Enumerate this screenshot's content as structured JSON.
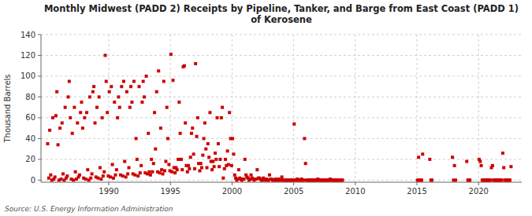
{
  "chart_data": {
    "type": "scatter",
    "title": "Monthly Midwest (PADD 2) Receipts by Pipeline, Tanker, and Barge from East Coast (PADD 1)\nof Kerosene",
    "ylabel": "Thousand Barrels",
    "annotations": [
      "Source: U.S. Energy Information Administration"
    ],
    "color": "#cc0000",
    "marker": "square",
    "grid": true,
    "xlim": [
      1984.5,
      2023.5
    ],
    "ylim": [
      -2,
      140
    ],
    "yticks": [
      0,
      20,
      40,
      60,
      80,
      100,
      120,
      140
    ],
    "xticks": [
      1990,
      1995,
      2000,
      2005,
      2010,
      2015,
      2020
    ],
    "x": [
      1985.04,
      1985.13,
      1985.21,
      1985.29,
      1985.38,
      1985.46,
      1985.54,
      1985.63,
      1985.71,
      1985.79,
      1985.88,
      1985.96,
      1986.04,
      1986.13,
      1986.21,
      1986.29,
      1986.38,
      1986.46,
      1986.54,
      1986.63,
      1986.71,
      1986.79,
      1986.88,
      1986.96,
      1987.04,
      1987.13,
      1987.21,
      1987.29,
      1987.38,
      1987.46,
      1987.54,
      1987.63,
      1987.71,
      1987.79,
      1987.88,
      1987.96,
      1988.04,
      1988.13,
      1988.21,
      1988.29,
      1988.38,
      1988.46,
      1988.54,
      1988.63,
      1988.71,
      1988.79,
      1988.88,
      1988.96,
      1989.04,
      1989.13,
      1989.21,
      1989.29,
      1989.38,
      1989.46,
      1989.54,
      1989.63,
      1989.71,
      1989.79,
      1989.88,
      1989.96,
      1990.04,
      1990.13,
      1990.21,
      1990.29,
      1990.38,
      1990.46,
      1990.54,
      1990.63,
      1990.71,
      1990.79,
      1990.88,
      1990.96,
      1991.04,
      1991.13,
      1991.21,
      1991.29,
      1991.38,
      1991.46,
      1991.54,
      1991.63,
      1991.71,
      1991.79,
      1991.88,
      1991.96,
      1992.04,
      1992.13,
      1992.21,
      1992.29,
      1992.38,
      1992.46,
      1992.54,
      1992.63,
      1992.71,
      1992.79,
      1992.88,
      1992.96,
      1993.04,
      1993.13,
      1993.21,
      1993.29,
      1993.38,
      1993.46,
      1993.54,
      1993.63,
      1993.71,
      1993.79,
      1993.88,
      1993.96,
      1994.04,
      1994.13,
      1994.21,
      1994.29,
      1994.38,
      1994.46,
      1994.54,
      1994.63,
      1994.71,
      1994.79,
      1994.88,
      1994.96,
      1995.04,
      1995.13,
      1995.21,
      1995.29,
      1995.38,
      1995.46,
      1995.54,
      1995.63,
      1995.71,
      1995.79,
      1995.88,
      1995.96,
      1996.04,
      1996.13,
      1996.21,
      1996.29,
      1996.38,
      1996.46,
      1996.54,
      1996.63,
      1996.71,
      1996.79,
      1996.88,
      1996.96,
      1997.04,
      1997.13,
      1997.21,
      1997.29,
      1997.38,
      1997.46,
      1997.54,
      1997.63,
      1997.71,
      1997.79,
      1997.88,
      1997.96,
      1998.04,
      1998.13,
      1998.21,
      1998.29,
      1998.38,
      1998.46,
      1998.54,
      1998.63,
      1998.71,
      1998.79,
      1998.88,
      1998.96,
      1999.04,
      1999.13,
      1999.21,
      1999.29,
      1999.38,
      1999.46,
      1999.54,
      1999.63,
      1999.71,
      1999.79,
      1999.88,
      1999.96,
      2000.04,
      2000.13,
      2000.21,
      2000.29,
      2000.38,
      2000.46,
      2000.54,
      2000.63,
      2000.71,
      2000.79,
      2000.88,
      2000.96,
      2001.04,
      2001.13,
      2001.21,
      2001.29,
      2001.38,
      2001.46,
      2001.54,
      2001.63,
      2001.71,
      2001.79,
      2001.88,
      2001.96,
      2002.04,
      2002.13,
      2002.21,
      2002.29,
      2002.38,
      2002.46,
      2002.54,
      2002.63,
      2002.71,
      2002.79,
      2002.88,
      2002.96,
      2003.04,
      2003.13,
      2003.21,
      2003.29,
      2003.38,
      2003.46,
      2003.54,
      2003.63,
      2003.71,
      2003.79,
      2003.88,
      2003.96,
      2004.04,
      2004.13,
      2004.21,
      2004.29,
      2004.38,
      2004.46,
      2004.54,
      2004.63,
      2004.71,
      2004.79,
      2004.88,
      2004.96,
      2005.04,
      2005.13,
      2005.21,
      2005.29,
      2005.38,
      2005.46,
      2005.54,
      2005.63,
      2005.71,
      2005.79,
      2005.88,
      2005.96,
      2006.04,
      2006.13,
      2006.21,
      2006.29,
      2006.38,
      2006.46,
      2006.54,
      2006.63,
      2006.71,
      2006.79,
      2006.88,
      2006.96,
      2007.04,
      2007.13,
      2007.21,
      2007.29,
      2007.38,
      2007.46,
      2007.54,
      2007.63,
      2007.71,
      2007.79,
      2007.88,
      2007.96,
      2008.04,
      2008.13,
      2008.21,
      2008.29,
      2008.38,
      2008.46,
      2008.54,
      2008.63,
      2008.71,
      2008.79,
      2008.88,
      2008.96,
      2015.04,
      2015.13,
      2015.21,
      2015.29,
      2015.38,
      2015.46,
      2016.04,
      2016.13,
      2016.21,
      2017.88,
      2017.96,
      2018.04,
      2018.13,
      2019.04,
      2019.13,
      2019.21,
      2019.29,
      2020.04,
      2020.13,
      2020.21,
      2020.29,
      2020.38,
      2020.46,
      2020.54,
      2020.63,
      2020.71,
      2020.79,
      2020.88,
      2020.96,
      2021.04,
      2021.13,
      2021.21,
      2021.29,
      2021.38,
      2021.46,
      2021.54,
      2021.63,
      2021.71,
      2021.79,
      2021.88,
      2021.96,
      2022.04,
      2022.13,
      2022.21,
      2022.29,
      2022.38,
      2022.46,
      2022.54,
      2022.63
    ],
    "values": [
      35,
      2,
      48,
      5,
      0,
      60,
      1,
      3,
      62,
      85,
      34,
      0,
      50,
      1,
      55,
      6,
      0,
      70,
      2,
      4,
      80,
      95,
      60,
      1,
      45,
      0,
      70,
      8,
      1,
      55,
      3,
      5,
      65,
      75,
      50,
      2,
      60,
      1,
      65,
      10,
      0,
      80,
      2,
      6,
      85,
      90,
      55,
      3,
      70,
      2,
      80,
      12,
      1,
      60,
      4,
      8,
      120,
      95,
      65,
      4,
      85,
      3,
      90,
      15,
      2,
      75,
      5,
      10,
      60,
      80,
      70,
      5,
      90,
      4,
      95,
      18,
      3,
      85,
      6,
      12,
      70,
      90,
      75,
      6,
      95,
      5,
      40,
      20,
      4,
      90,
      7,
      14,
      75,
      95,
      80,
      7,
      100,
      6,
      45,
      8,
      5,
      20,
      8,
      16,
      65,
      30,
      85,
      8,
      105,
      7,
      50,
      10,
      6,
      95,
      9,
      18,
      70,
      40,
      15,
      9,
      121,
      8,
      96,
      12,
      7,
      12,
      10,
      20,
      75,
      45,
      20,
      10,
      109,
      110,
      55,
      14,
      8,
      14,
      11,
      22,
      45,
      50,
      25,
      11,
      112,
      42,
      60,
      16,
      9,
      16,
      12,
      24,
      40,
      55,
      30,
      12,
      35,
      22,
      65,
      18,
      10,
      18,
      13,
      26,
      20,
      60,
      35,
      13,
      20,
      60,
      70,
      2,
      11,
      20,
      14,
      28,
      15,
      65,
      40,
      14,
      40,
      25,
      5,
      2,
      0,
      1,
      10,
      2,
      1,
      0,
      1,
      1,
      20,
      5,
      3,
      2,
      0,
      1,
      5,
      2,
      1,
      0,
      1,
      1,
      10,
      2,
      2,
      1,
      0,
      0,
      2,
      1,
      0,
      1,
      0,
      0,
      5,
      1,
      1,
      0,
      0,
      0,
      1,
      0,
      0,
      1,
      0,
      0,
      3,
      0,
      0,
      0,
      0,
      0,
      0,
      0,
      0,
      0,
      0,
      0,
      54,
      0,
      0,
      1,
      0,
      0,
      0,
      1,
      0,
      0,
      40,
      16,
      0,
      0,
      0,
      0,
      0,
      0,
      0,
      0,
      0,
      0,
      0,
      1,
      0,
      0,
      0,
      0,
      0,
      0,
      0,
      0,
      0,
      0,
      0,
      1,
      0,
      0,
      0,
      0,
      0,
      0,
      0,
      0,
      0,
      0,
      0,
      0,
      0,
      22,
      0,
      0,
      0,
      25,
      20,
      0,
      0,
      22,
      0,
      14,
      0,
      18,
      0,
      0,
      0,
      20,
      18,
      14,
      0,
      0,
      0,
      0,
      0,
      0,
      0,
      0,
      0,
      12,
      14,
      0,
      0,
      0,
      0,
      0,
      0,
      0,
      0,
      0,
      26,
      12,
      0,
      0,
      0,
      0,
      0,
      0,
      13
    ]
  }
}
